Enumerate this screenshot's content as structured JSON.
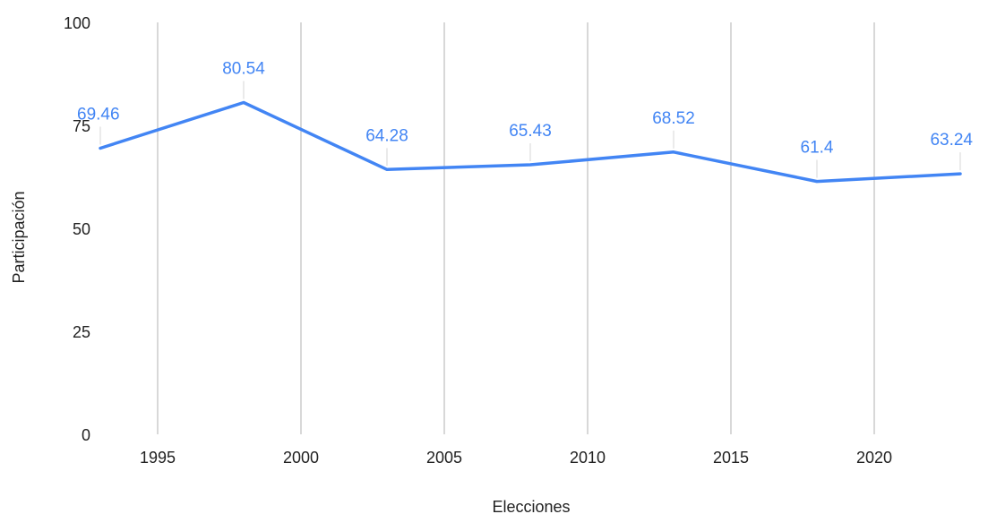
{
  "chart_data": {
    "type": "line",
    "title": "",
    "xlabel": "Elecciones",
    "ylabel": "Participación",
    "xlim": [
      1993,
      2023
    ],
    "ylim": [
      0,
      100
    ],
    "x_ticks": [
      1995,
      2000,
      2005,
      2010,
      2015,
      2020
    ],
    "y_ticks": [
      0,
      25,
      50,
      75,
      100
    ],
    "grid": "vertical",
    "legend": "none",
    "line_color": "#4285f4",
    "series": [
      {
        "x": [
          1993,
          1998,
          2003,
          2008,
          2013,
          2018,
          2023
        ],
        "values": [
          69.46,
          80.54,
          64.28,
          65.43,
          68.52,
          61.4,
          63.24
        ],
        "labels": [
          "69.46",
          "80.54",
          "64.28",
          "65.43",
          "68.52",
          "61.4",
          "63.24"
        ]
      }
    ]
  }
}
